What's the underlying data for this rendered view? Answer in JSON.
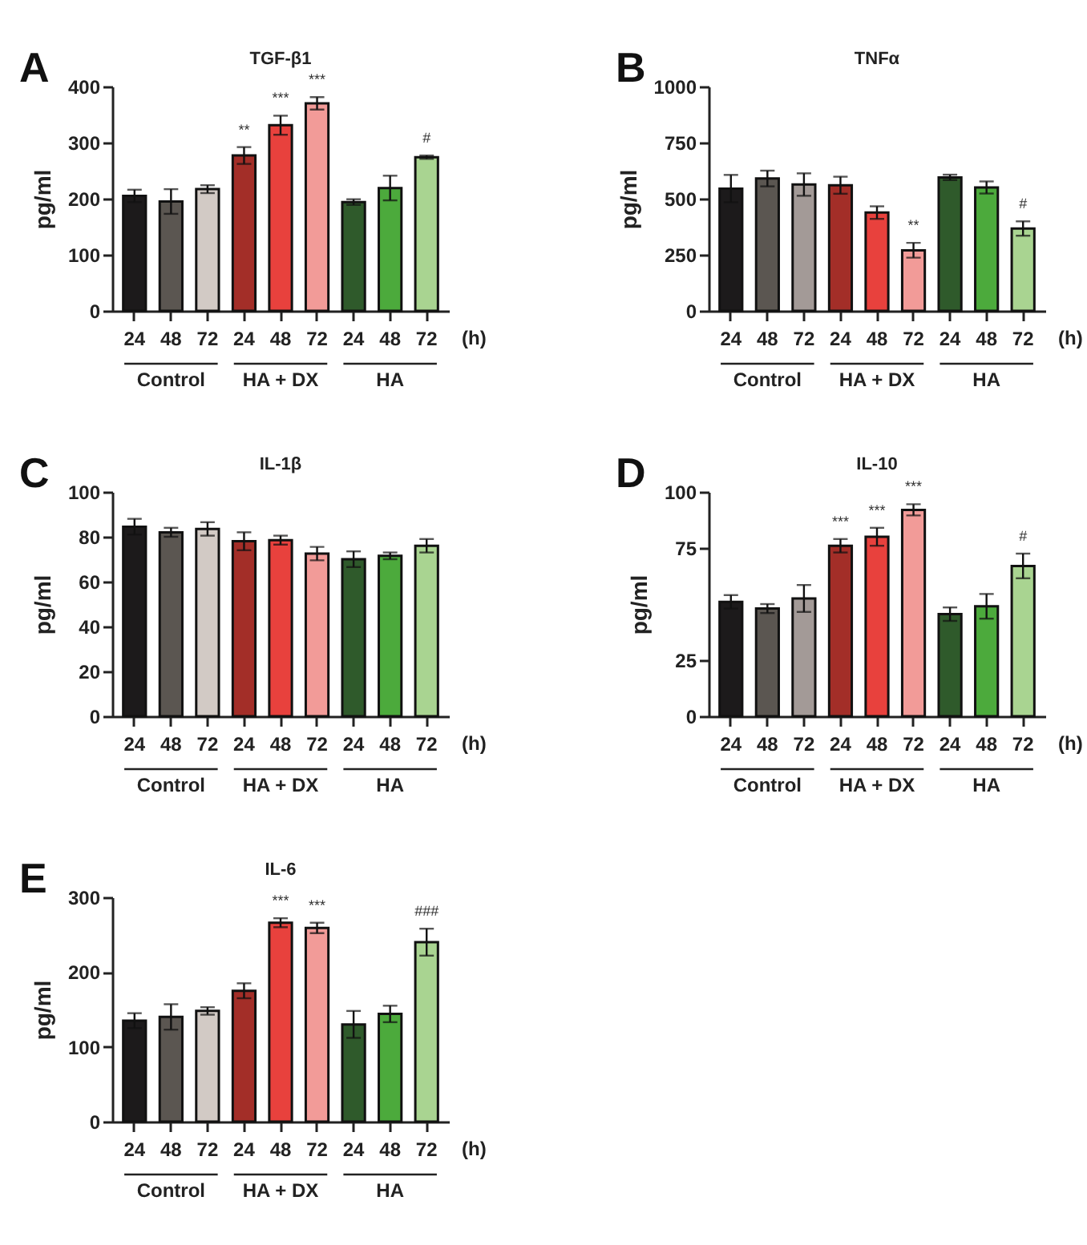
{
  "chart_data": [
    {
      "type": "bar",
      "title": "TGF-β1",
      "ylabel": "pg/ml",
      "categories": [
        "24",
        "48",
        "72",
        "24",
        "48",
        "72",
        "24",
        "48",
        "72"
      ],
      "values": [
        205,
        195,
        217,
        277,
        331,
        370,
        194,
        219,
        274
      ],
      "errors": [
        11,
        22,
        7,
        15,
        17,
        11,
        5,
        22,
        3
      ],
      "colors": [
        "#1c1a1b",
        "#5b5651",
        "#d2cac5",
        "#a32e28",
        "#e8413d",
        "#f29b98",
        "#2f5a2b",
        "#4caa3c",
        "#a9d491"
      ],
      "ylim": [
        0,
        400
      ],
      "yticks": [
        0,
        100,
        200,
        300,
        400
      ],
      "value_labels": [
        null,
        null,
        null,
        "**",
        "***",
        "***",
        null,
        null,
        "#"
      ],
      "annotations": [
        "A",
        "Control",
        "HA + DX",
        "HA",
        "(h)"
      ]
    },
    {
      "type": "bar",
      "title": "TNFα",
      "ylabel": "pg/ml",
      "categories": [
        "24",
        "48",
        "72",
        "24",
        "48",
        "72",
        "24",
        "48",
        "72"
      ],
      "values": [
        545,
        590,
        563,
        560,
        438,
        270,
        595,
        550,
        367
      ],
      "errors": [
        61,
        35,
        50,
        38,
        28,
        33,
        12,
        27,
        32
      ],
      "colors": [
        "#1c1a1b",
        "#5b5651",
        "#a39a97",
        "#a32e28",
        "#e8413d",
        "#f29b98",
        "#2f5a2b",
        "#4caa3c",
        "#a9d491"
      ],
      "ylim": [
        0,
        1000
      ],
      "yticks": [
        0,
        250,
        500,
        750,
        1000
      ],
      "value_labels": [
        null,
        null,
        null,
        null,
        null,
        "**",
        null,
        null,
        "#"
      ],
      "annotations": [
        "B",
        "Control",
        "HA + DX",
        "HA",
        "(h)"
      ]
    },
    {
      "type": "bar",
      "title": "IL-1β",
      "ylabel": "pg/ml",
      "categories": [
        "24",
        "48",
        "72",
        "24",
        "48",
        "72",
        "24",
        "48",
        "72"
      ],
      "values": [
        84.5,
        82,
        83.5,
        78,
        78.5,
        72.5,
        70,
        71.5,
        76
      ],
      "errors": [
        3.5,
        2,
        3,
        4,
        2,
        3,
        3.5,
        1.5,
        3
      ],
      "colors": [
        "#1c1a1b",
        "#5b5651",
        "#d2cac5",
        "#a32e28",
        "#e8413d",
        "#f29b98",
        "#2f5a2b",
        "#4caa3c",
        "#a9d491"
      ],
      "ylim": [
        0,
        100
      ],
      "yticks": [
        0,
        20,
        40,
        60,
        80,
        100
      ],
      "annotations": [
        "C",
        "Control",
        "HA + DX",
        "HA",
        "(h)"
      ]
    },
    {
      "type": "bar",
      "title": "IL-10",
      "ylabel": "pg/ml",
      "categories": [
        "24",
        "48",
        "72",
        "24",
        "48",
        "72",
        "24",
        "48",
        "72"
      ],
      "values": [
        51,
        48,
        52.5,
        76,
        80,
        92,
        45.5,
        49,
        67
      ],
      "errors": [
        3,
        2,
        6,
        3,
        4,
        2.5,
        3,
        5.5,
        5.5
      ],
      "colors": [
        "#1c1a1b",
        "#5b5651",
        "#a39a97",
        "#a32e28",
        "#e8413d",
        "#f29b98",
        "#2f5a2b",
        "#4caa3c",
        "#a9d491"
      ],
      "ylim": [
        0,
        100
      ],
      "yticks": [
        0,
        25,
        75,
        100
      ],
      "value_labels": [
        null,
        null,
        null,
        "***",
        "***",
        "***",
        null,
        null,
        "#"
      ],
      "annotations": [
        "D",
        "Control",
        "HA + DX",
        "HA",
        "(h)"
      ]
    },
    {
      "type": "bar",
      "title": "IL-6",
      "ylabel": "pg/ml",
      "categories": [
        "24",
        "48",
        "72",
        "24",
        "48",
        "72",
        "24",
        "48",
        "72"
      ],
      "values": [
        135,
        140,
        148,
        175,
        266,
        259,
        130,
        144,
        240
      ],
      "errors": [
        10,
        17,
        5,
        10,
        6,
        7,
        18,
        11,
        18
      ],
      "colors": [
        "#1c1a1b",
        "#5b5651",
        "#d2cac5",
        "#a32e28",
        "#e8413d",
        "#f29b98",
        "#2f5a2b",
        "#4caa3c",
        "#a9d491"
      ],
      "ylim": [
        0,
        300
      ],
      "yticks": [
        0,
        100,
        200,
        300
      ],
      "value_labels": [
        null,
        null,
        null,
        null,
        "***",
        "***",
        null,
        null,
        "###"
      ],
      "annotations": [
        "E",
        "Control",
        "HA + DX",
        "HA",
        "(h)"
      ]
    }
  ]
}
